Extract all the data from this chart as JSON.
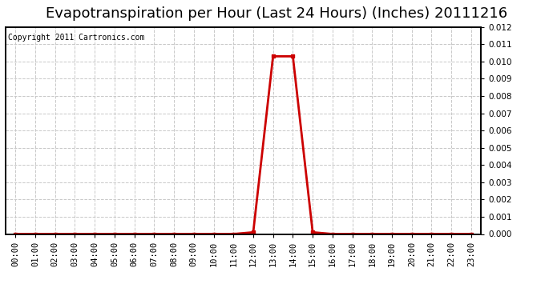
{
  "title": "Evapotranspiration per Hour (Last 24 Hours) (Inches) 20111216",
  "copyright_text": "Copyright 2011 Cartronics.com",
  "x_labels": [
    "00:00",
    "01:00",
    "02:00",
    "03:00",
    "04:00",
    "05:00",
    "06:00",
    "07:00",
    "08:00",
    "09:00",
    "10:00",
    "11:00",
    "12:00",
    "13:00",
    "14:00",
    "15:00",
    "16:00",
    "17:00",
    "18:00",
    "19:00",
    "20:00",
    "21:00",
    "22:00",
    "23:00"
  ],
  "hours": [
    0,
    1,
    2,
    3,
    4,
    5,
    6,
    7,
    8,
    9,
    10,
    11,
    12,
    13,
    14,
    15,
    16,
    17,
    18,
    19,
    20,
    21,
    22,
    23
  ],
  "values": [
    0,
    0,
    0,
    0,
    0,
    0,
    0,
    0,
    0,
    0,
    0,
    0,
    0.0001,
    0.0103,
    0.0103,
    0.0001,
    0,
    0,
    0,
    0,
    0,
    0,
    0,
    0
  ],
  "line_color": "#cc0000",
  "marker": "s",
  "marker_size": 3,
  "background_color": "#ffffff",
  "grid_color": "#c8c8c8",
  "ylim": [
    0,
    0.012
  ],
  "yticks": [
    0.0,
    0.001,
    0.002,
    0.003,
    0.004,
    0.005,
    0.006,
    0.007,
    0.008,
    0.009,
    0.01,
    0.011,
    0.012
  ],
  "title_fontsize": 13,
  "copyright_fontsize": 7,
  "tick_fontsize": 7.5,
  "line_width": 2.0,
  "border_color": "#000000"
}
